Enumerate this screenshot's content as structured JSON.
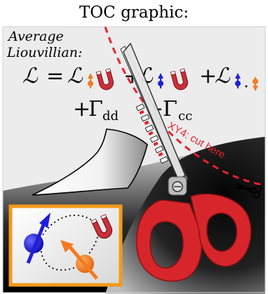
{
  "header": {
    "title": "TOC graphic:"
  },
  "panel": {
    "label_line1": "Average",
    "label_line2": "Liouvillian:"
  },
  "equation": {
    "symbol": "ℒ",
    "equals": "=",
    "plus": "+",
    "gamma": "Γ",
    "sub_dd": "dd",
    "sub_cc": "cc"
  },
  "cut_label": "XY4: cut here",
  "icons": [
    "spin-up-icon",
    "magnet-icon",
    "spin-down-icon",
    "scissors-icon",
    "small-scissors-icon"
  ],
  "colors": {
    "orange": "#f47a20",
    "blue": "#1f1fd9",
    "red": "#e61e24",
    "magnet_red": "#c9303a",
    "frame_orange": "#f29a1a",
    "scissor_red": "#d7262b",
    "cut_line": "#e8232a"
  }
}
